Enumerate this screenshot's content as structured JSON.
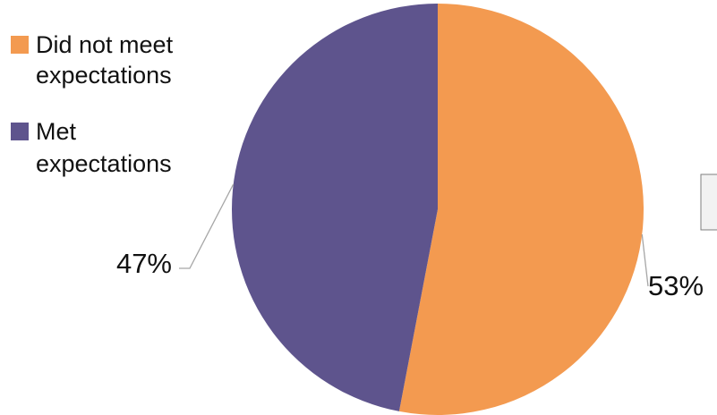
{
  "chart_data": {
    "type": "pie",
    "title": "",
    "categories": [
      "Did not meet expectations",
      "Met expectations"
    ],
    "values": [
      53,
      47
    ],
    "unit": "%",
    "data_labels": [
      "53%",
      "47%"
    ],
    "colors": [
      "#f39a50",
      "#5e548d"
    ],
    "legend": {
      "placement": "top-left",
      "entries": [
        {
          "lines": [
            "Did not meet",
            "expectations"
          ],
          "color": "#f39a50"
        },
        {
          "lines": [
            "Met",
            "expectations"
          ],
          "color": "#5e548d"
        }
      ]
    }
  }
}
